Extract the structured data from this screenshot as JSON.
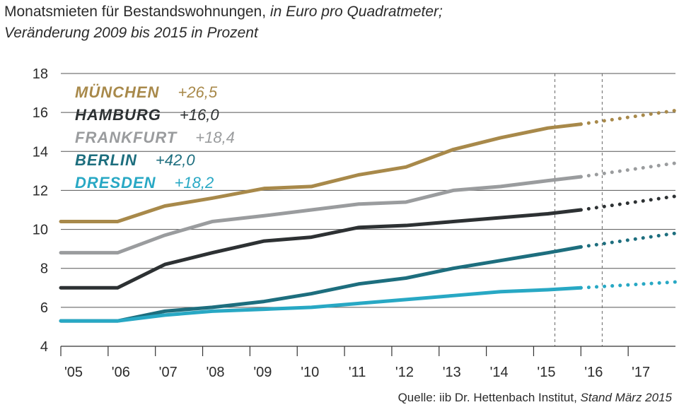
{
  "header": {
    "title_main": "Monatsmieten für Bestandswohnungen,",
    "title_unit": " in Euro pro Quadratmeter;",
    "subtitle": "Veränderung 2009 bis 2015 in Prozent"
  },
  "footer": {
    "source_prefix": "Quelle: iib Dr. Hettenbach Institut, ",
    "source_date": "Stand März 2015"
  },
  "chart_data": {
    "type": "line",
    "title": "Monatsmieten für Bestandswohnungen, in Euro pro Quadratmeter; Veränderung 2009 bis 2015 in Prozent",
    "x_labels": [
      "'05",
      "'06",
      "'07",
      "'08",
      "'09",
      "'10",
      "'11",
      "'12",
      "'13",
      "'14",
      "'15",
      "'16",
      "'17"
    ],
    "x_range": [
      2005,
      2018
    ],
    "ylim": [
      4,
      18
    ],
    "y_ticks": [
      4,
      6,
      8,
      10,
      12,
      14,
      16,
      18
    ],
    "forecast_start": 2016,
    "dashed_markers": [
      2015,
      2016
    ],
    "series": [
      {
        "name": "MÜNCHEN",
        "change": "+26,5",
        "color": "#a8894a",
        "x": [
          2005,
          2006.2,
          2007.2,
          2008.2,
          2009.3,
          2010.3,
          2011.3,
          2012.3,
          2013.3,
          2014.3,
          2015.3,
          2016
        ],
        "values": [
          10.4,
          10.4,
          11.2,
          11.6,
          12.1,
          12.2,
          12.8,
          13.2,
          14.1,
          14.7,
          15.2,
          15.4
        ],
        "forecast_x": [
          2016,
          2018
        ],
        "forecast_values": [
          15.4,
          16.1
        ]
      },
      {
        "name": "HAMBURG",
        "change": "+16,0",
        "color": "#2d3133",
        "x": [
          2005,
          2006.2,
          2007.2,
          2008.2,
          2009.3,
          2010.3,
          2011.3,
          2012.3,
          2013.3,
          2014.3,
          2015.3,
          2016
        ],
        "values": [
          7.0,
          7.0,
          8.2,
          8.8,
          9.4,
          9.6,
          10.1,
          10.2,
          10.4,
          10.6,
          10.8,
          11.0
        ],
        "forecast_x": [
          2016,
          2018
        ],
        "forecast_values": [
          11.0,
          11.7
        ]
      },
      {
        "name": "FRANKFURT",
        "change": "+18,4",
        "color": "#9a9c9e",
        "x": [
          2005,
          2006.2,
          2007.2,
          2008.2,
          2009.3,
          2010.3,
          2011.3,
          2012.3,
          2013.3,
          2014.3,
          2015.3,
          2016
        ],
        "values": [
          8.8,
          8.8,
          9.7,
          10.4,
          10.7,
          11.0,
          11.3,
          11.4,
          12.0,
          12.2,
          12.5,
          12.7
        ],
        "forecast_x": [
          2016,
          2018
        ],
        "forecast_values": [
          12.7,
          13.4
        ]
      },
      {
        "name": "BERLIN",
        "change": "+42,0",
        "color": "#1d6e7e",
        "x": [
          2005,
          2006.2,
          2007.2,
          2008.2,
          2009.3,
          2010.3,
          2011.3,
          2012.3,
          2013.3,
          2014.3,
          2015.3,
          2016
        ],
        "values": [
          5.3,
          5.3,
          5.8,
          6.0,
          6.3,
          6.7,
          7.2,
          7.5,
          8.0,
          8.4,
          8.8,
          9.1
        ],
        "forecast_x": [
          2016,
          2018
        ],
        "forecast_values": [
          9.1,
          9.8
        ]
      },
      {
        "name": "DRESDEN",
        "change": "+18,2",
        "color": "#28a8c4",
        "x": [
          2005,
          2006.2,
          2007.2,
          2008.2,
          2009.3,
          2010.3,
          2011.3,
          2012.3,
          2013.3,
          2014.3,
          2015.3,
          2016
        ],
        "values": [
          5.3,
          5.3,
          5.6,
          5.8,
          5.9,
          6.0,
          6.2,
          6.4,
          6.6,
          6.8,
          6.9,
          7.0
        ],
        "forecast_x": [
          2016,
          2018
        ],
        "forecast_values": [
          7.0,
          7.3
        ]
      }
    ]
  }
}
